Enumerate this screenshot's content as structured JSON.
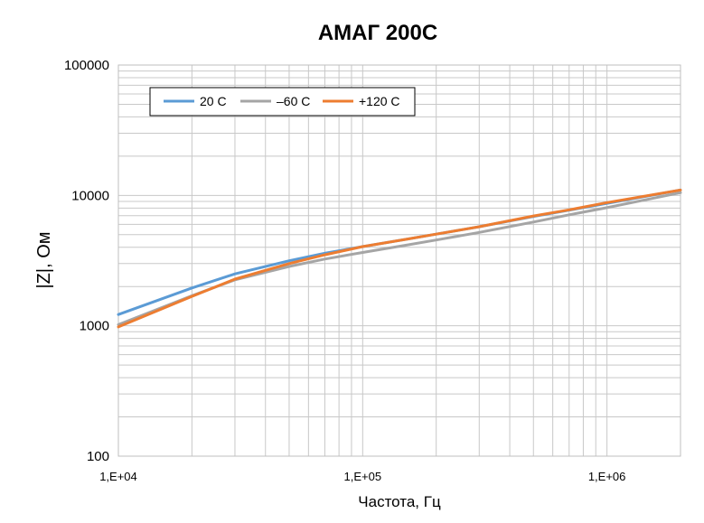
{
  "chart_data": {
    "type": "line",
    "title": "АМАГ 200С",
    "xlabel": "Частота, Гц",
    "ylabel": "|Z|, Ом",
    "x_scale": "log",
    "y_scale": "log",
    "xlim": [
      10000,
      2000000
    ],
    "ylim": [
      100,
      100000
    ],
    "x_ticks": [
      {
        "value": 10000,
        "label": "1,E+04"
      },
      {
        "value": 100000,
        "label": "1,E+05"
      },
      {
        "value": 1000000,
        "label": "1,E+06"
      }
    ],
    "y_ticks": [
      {
        "value": 100,
        "label": "100"
      },
      {
        "value": 1000,
        "label": "1000"
      },
      {
        "value": 10000,
        "label": "10000"
      },
      {
        "value": 100000,
        "label": "100000"
      }
    ],
    "grid": true,
    "legend_position": "top-left",
    "x": [
      10000,
      20000,
      30000,
      50000,
      70000,
      100000,
      150000,
      200000,
      300000,
      500000,
      700000,
      1000000,
      2000000
    ],
    "series": [
      {
        "name": "20 С",
        "color": "#5b9bd5",
        "values": [
          1220,
          1950,
          2500,
          3150,
          3600,
          4050,
          4600,
          5050,
          5750,
          6900,
          7700,
          8700,
          11000
        ]
      },
      {
        "name": "–60 С",
        "color": "#a5a5a5",
        "values": [
          1020,
          1700,
          2250,
          2850,
          3250,
          3650,
          4150,
          4550,
          5200,
          6250,
          7100,
          8050,
          10500
        ]
      },
      {
        "name": "+120 С",
        "color": "#ed7d31",
        "values": [
          980,
          1680,
          2280,
          3000,
          3500,
          4050,
          4600,
          5050,
          5750,
          6950,
          7750,
          8800,
          11000
        ]
      }
    ]
  }
}
